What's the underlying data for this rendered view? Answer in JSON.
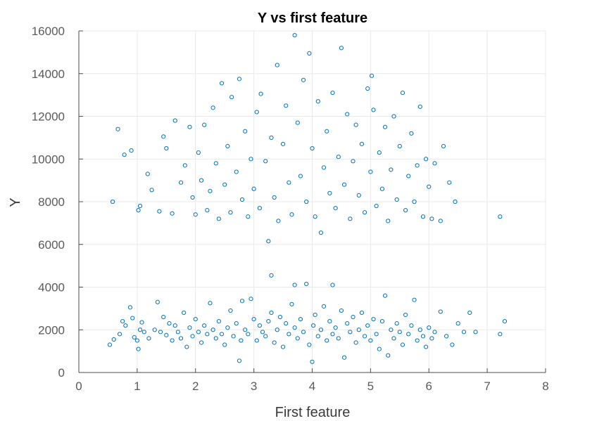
{
  "chart_data": {
    "type": "scatter",
    "title": "Y vs first feature",
    "xlabel": "First feature",
    "ylabel": "Y",
    "xlim": [
      0,
      8
    ],
    "ylim": [
      0,
      16000
    ],
    "xticks": [
      0,
      1,
      2,
      3,
      4,
      5,
      6,
      7,
      8
    ],
    "yticks": [
      0,
      2000,
      4000,
      6000,
      8000,
      10000,
      12000,
      14000,
      16000
    ],
    "grid": true,
    "marker": "circle-open",
    "color": "#0072BD",
    "series": [
      {
        "name": "",
        "points": [
          [
            0.53,
            1300
          ],
          [
            0.6,
            1550
          ],
          [
            0.7,
            1800
          ],
          [
            0.75,
            2400
          ],
          [
            0.8,
            2200
          ],
          [
            0.88,
            3050
          ],
          [
            0.92,
            2550
          ],
          [
            0.95,
            1650
          ],
          [
            1.0,
            1500
          ],
          [
            1.02,
            1100
          ],
          [
            1.05,
            2000
          ],
          [
            1.08,
            2350
          ],
          [
            1.12,
            1900
          ],
          [
            1.2,
            1600
          ],
          [
            1.3,
            2000
          ],
          [
            1.35,
            3300
          ],
          [
            1.4,
            1900
          ],
          [
            1.45,
            2600
          ],
          [
            1.5,
            1750
          ],
          [
            1.55,
            2300
          ],
          [
            1.6,
            1500
          ],
          [
            1.65,
            2200
          ],
          [
            1.7,
            1900
          ],
          [
            1.75,
            1600
          ],
          [
            1.8,
            2800
          ],
          [
            1.85,
            1200
          ],
          [
            1.9,
            2100
          ],
          [
            1.95,
            1700
          ],
          [
            2.0,
            2500
          ],
          [
            2.05,
            1900
          ],
          [
            2.1,
            1400
          ],
          [
            2.15,
            2200
          ],
          [
            2.2,
            1800
          ],
          [
            2.25,
            3250
          ],
          [
            2.3,
            2000
          ],
          [
            2.35,
            1600
          ],
          [
            2.4,
            2400
          ],
          [
            2.45,
            1800
          ],
          [
            2.5,
            1300
          ],
          [
            2.55,
            2100
          ],
          [
            2.6,
            2900
          ],
          [
            2.65,
            1700
          ],
          [
            2.7,
            2300
          ],
          [
            2.75,
            550
          ],
          [
            2.78,
            1500
          ],
          [
            2.8,
            3350
          ],
          [
            2.85,
            2000
          ],
          [
            2.9,
            1800
          ],
          [
            2.95,
            3450
          ],
          [
            3.0,
            2500
          ],
          [
            3.05,
            1500
          ],
          [
            3.1,
            2200
          ],
          [
            3.15,
            1900
          ],
          [
            3.2,
            1700
          ],
          [
            3.25,
            2400
          ],
          [
            3.3,
            2800
          ],
          [
            3.35,
            1400
          ],
          [
            3.4,
            2000
          ],
          [
            3.45,
            2600
          ],
          [
            3.5,
            1200
          ],
          [
            3.55,
            2300
          ],
          [
            3.6,
            1800
          ],
          [
            3.65,
            3200
          ],
          [
            3.7,
            2100
          ],
          [
            3.75,
            1600
          ],
          [
            3.8,
            2500
          ],
          [
            3.85,
            1900
          ],
          [
            3.9,
            4150
          ],
          [
            3.95,
            1300
          ],
          [
            4.0,
            500
          ],
          [
            4.02,
            2200
          ],
          [
            4.05,
            2700
          ],
          [
            4.1,
            1700
          ],
          [
            4.15,
            2000
          ],
          [
            4.2,
            3100
          ],
          [
            4.25,
            1500
          ],
          [
            4.3,
            2400
          ],
          [
            4.35,
            1800
          ],
          [
            4.4,
            2100
          ],
          [
            4.45,
            1600
          ],
          [
            4.5,
            2900
          ],
          [
            4.55,
            700
          ],
          [
            4.6,
            2300
          ],
          [
            4.65,
            1900
          ],
          [
            4.7,
            2600
          ],
          [
            4.75,
            1400
          ],
          [
            4.8,
            2000
          ],
          [
            4.85,
            2800
          ],
          [
            4.9,
            1700
          ],
          [
            4.95,
            2200
          ],
          [
            5.0,
            1500
          ],
          [
            5.05,
            2500
          ],
          [
            5.1,
            1800
          ],
          [
            5.15,
            1100
          ],
          [
            5.2,
            2400
          ],
          [
            5.25,
            3600
          ],
          [
            5.3,
            800
          ],
          [
            5.35,
            2000
          ],
          [
            5.4,
            1600
          ],
          [
            5.45,
            2300
          ],
          [
            5.5,
            1900
          ],
          [
            5.55,
            1300
          ],
          [
            5.6,
            2700
          ],
          [
            5.65,
            1800
          ],
          [
            5.7,
            2200
          ],
          [
            5.75,
            3400
          ],
          [
            5.8,
            1500
          ],
          [
            5.85,
            2000
          ],
          [
            5.9,
            1700
          ],
          [
            5.95,
            1200
          ],
          [
            6.0,
            2100
          ],
          [
            6.05,
            1600
          ],
          [
            6.1,
            1900
          ],
          [
            6.2,
            2850
          ],
          [
            6.3,
            1700
          ],
          [
            6.4,
            1300
          ],
          [
            6.5,
            2300
          ],
          [
            6.6,
            1900
          ],
          [
            6.7,
            2800
          ],
          [
            6.8,
            1900
          ],
          [
            7.22,
            1800
          ],
          [
            7.3,
            2400
          ],
          [
            3.3,
            4550
          ],
          [
            3.7,
            4100
          ],
          [
            4.35,
            4100
          ],
          [
            0.58,
            8000
          ],
          [
            0.67,
            11400
          ],
          [
            0.78,
            10200
          ],
          [
            0.9,
            10400
          ],
          [
            1.02,
            7600
          ],
          [
            1.05,
            7800
          ],
          [
            1.18,
            9300
          ],
          [
            1.25,
            8550
          ],
          [
            1.38,
            7550
          ],
          [
            1.45,
            11050
          ],
          [
            1.5,
            10500
          ],
          [
            1.6,
            7450
          ],
          [
            1.65,
            11800
          ],
          [
            1.75,
            8900
          ],
          [
            1.82,
            9700
          ],
          [
            1.9,
            11500
          ],
          [
            1.95,
            8200
          ],
          [
            2.0,
            7400
          ],
          [
            2.05,
            10300
          ],
          [
            2.1,
            9000
          ],
          [
            2.15,
            11600
          ],
          [
            2.2,
            7600
          ],
          [
            2.25,
            8500
          ],
          [
            2.3,
            12400
          ],
          [
            2.35,
            9800
          ],
          [
            2.4,
            7200
          ],
          [
            2.45,
            13550
          ],
          [
            2.5,
            8800
          ],
          [
            2.55,
            10600
          ],
          [
            2.6,
            7500
          ],
          [
            2.62,
            12900
          ],
          [
            2.7,
            9400
          ],
          [
            2.75,
            13750
          ],
          [
            2.8,
            8100
          ],
          [
            2.85,
            11300
          ],
          [
            2.9,
            7300
          ],
          [
            2.95,
            10000
          ],
          [
            3.0,
            8600
          ],
          [
            3.05,
            12200
          ],
          [
            3.1,
            7700
          ],
          [
            3.12,
            13050
          ],
          [
            3.2,
            9900
          ],
          [
            3.25,
            6150
          ],
          [
            3.3,
            11000
          ],
          [
            3.35,
            8200
          ],
          [
            3.4,
            14400
          ],
          [
            3.42,
            7100
          ],
          [
            3.5,
            10700
          ],
          [
            3.55,
            12500
          ],
          [
            3.6,
            8900
          ],
          [
            3.65,
            7400
          ],
          [
            3.7,
            15800
          ],
          [
            3.75,
            11700
          ],
          [
            3.8,
            9200
          ],
          [
            3.85,
            13700
          ],
          [
            3.9,
            8000
          ],
          [
            3.95,
            14950
          ],
          [
            4.0,
            10500
          ],
          [
            4.05,
            7300
          ],
          [
            4.1,
            12700
          ],
          [
            4.15,
            6550
          ],
          [
            4.2,
            9600
          ],
          [
            4.25,
            11300
          ],
          [
            4.3,
            8400
          ],
          [
            4.35,
            13100
          ],
          [
            4.4,
            7700
          ],
          [
            4.45,
            10100
          ],
          [
            4.5,
            15200
          ],
          [
            4.55,
            8800
          ],
          [
            4.6,
            12100
          ],
          [
            4.65,
            7200
          ],
          [
            4.7,
            9900
          ],
          [
            4.75,
            11600
          ],
          [
            4.8,
            8300
          ],
          [
            4.85,
            10700
          ],
          [
            4.9,
            7500
          ],
          [
            4.95,
            13300
          ],
          [
            5.0,
            9400
          ],
          [
            5.02,
            13900
          ],
          [
            5.05,
            12300
          ],
          [
            5.1,
            7800
          ],
          [
            5.15,
            10300
          ],
          [
            5.2,
            8600
          ],
          [
            5.25,
            11500
          ],
          [
            5.3,
            7100
          ],
          [
            5.35,
            9500
          ],
          [
            5.4,
            12000
          ],
          [
            5.45,
            8100
          ],
          [
            5.5,
            10600
          ],
          [
            5.55,
            13100
          ],
          [
            5.6,
            7600
          ],
          [
            5.65,
            9200
          ],
          [
            5.7,
            11200
          ],
          [
            5.75,
            8000
          ],
          [
            5.8,
            9700
          ],
          [
            5.85,
            12450
          ],
          [
            5.9,
            7300
          ],
          [
            5.95,
            10000
          ],
          [
            6.0,
            8700
          ],
          [
            6.05,
            7200
          ],
          [
            6.1,
            9800
          ],
          [
            6.2,
            7100
          ],
          [
            6.25,
            10600
          ],
          [
            6.35,
            8900
          ],
          [
            6.45,
            8000
          ],
          [
            7.22,
            7300
          ]
        ]
      }
    ]
  }
}
